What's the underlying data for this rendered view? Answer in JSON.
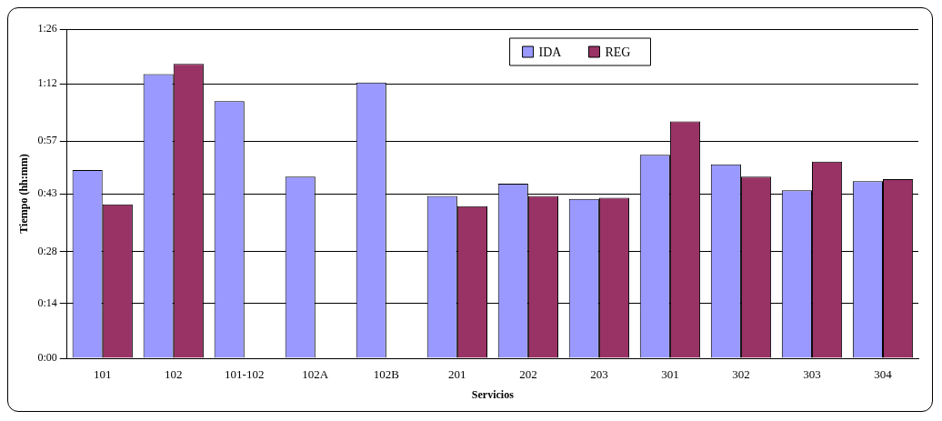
{
  "chart_data": {
    "type": "bar",
    "xlabel": "Servicios",
    "ylabel": "Tiempo (hh:mm)",
    "categories": [
      "101",
      "102",
      "101-102",
      "102A",
      "102B",
      "201",
      "202",
      "203",
      "301",
      "302",
      "303",
      "304"
    ],
    "series": [
      {
        "name": "IDA",
        "color": "#9999ff",
        "values": [
          49.4,
          74.6,
          67.5,
          47.7,
          72.4,
          42.6,
          45.8,
          41.8,
          53.4,
          50.9,
          44.1,
          46.5
        ]
      },
      {
        "name": "REG",
        "color": "#993366",
        "values": [
          40.4,
          77.3,
          null,
          null,
          null,
          39.9,
          42.6,
          42.1,
          62.2,
          47.7,
          51.6,
          47.0
        ]
      }
    ],
    "ylim": [
      0,
      86.4
    ],
    "yticks": [
      {
        "value": 0,
        "label": "0:00"
      },
      {
        "value": 14.4,
        "label": "0:14"
      },
      {
        "value": 28,
        "label": "0:28"
      },
      {
        "value": 43.2,
        "label": "0:43"
      },
      {
        "value": 57,
        "label": "0:57"
      },
      {
        "value": 72,
        "label": "1:12"
      },
      {
        "value": 86.4,
        "label": "1:26"
      }
    ],
    "grid": "y",
    "legend": "top"
  }
}
